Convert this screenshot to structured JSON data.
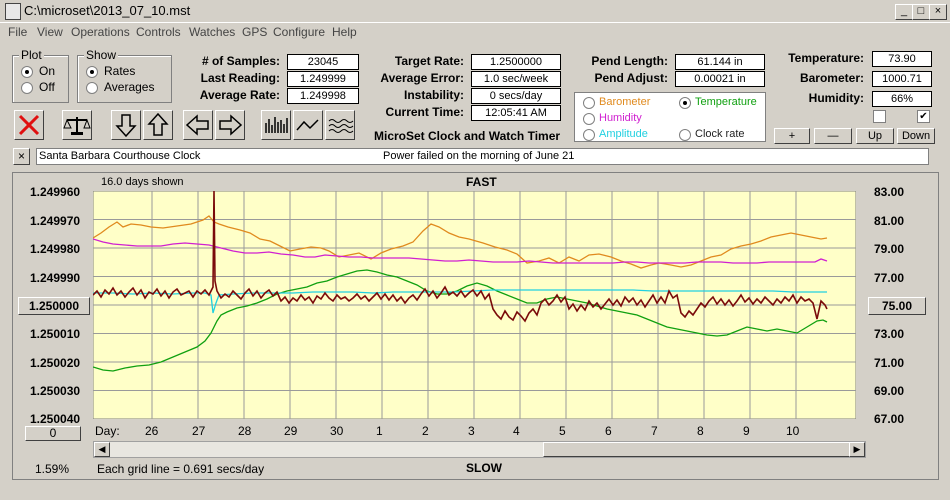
{
  "window": {
    "title": "C:\\microset\\2013_07_10.mst",
    "minimize_label": "_",
    "maximize_label": "□",
    "close_label": "×"
  },
  "menu": [
    "File",
    "View",
    "Operations",
    "Controls",
    "Watches",
    "GPS",
    "Configure",
    "Help"
  ],
  "plot_group": {
    "title": "Plot",
    "on": "On",
    "off": "Off",
    "selected": "On"
  },
  "show_group": {
    "title": "Show",
    "rates": "Rates",
    "averages": "Averages",
    "selected": "Rates"
  },
  "stats": {
    "samples_label": "# of Samples:",
    "samples": "23045",
    "last_reading_label": "Last Reading:",
    "last_reading": "1.249999",
    "average_rate_label": "Average Rate:",
    "average_rate": "1.249998",
    "target_rate_label": "Target Rate:",
    "target_rate": "1.2500000",
    "average_error_label": "Average Error:",
    "average_error": "1.0 sec/week",
    "instability_label": "Instability:",
    "instability": "0 secs/day",
    "current_time_label": "Current Time:",
    "current_time": "12:05:41 AM",
    "pend_length_label": "Pend Length:",
    "pend_length": "61.144 in",
    "pend_adjust_label": "Pend Adjust:",
    "pend_adjust": "0.00021 in",
    "temperature_label": "Temperature:",
    "temperature": "73.90",
    "barometer_label": "Barometer:",
    "barometer": "1000.71",
    "humidity_label": "Humidity:",
    "humidity": "66%"
  },
  "app_caption": "MicroSet Clock and Watch Timer",
  "sensor_select": {
    "barometer": "Barometer",
    "temperature": "Temperature",
    "humidity": "Humidity",
    "amplitude": "Amplitude",
    "clock_rate": "Clock rate",
    "selected": "Temperature",
    "colors": {
      "barometer": "#e08a1e",
      "temperature": "#10a010",
      "humidity": "#d020d0",
      "amplitude": "#20d0e0",
      "clock_rate": "#222222"
    }
  },
  "scale_buttons": {
    "plus": "+",
    "minus": "—",
    "up": "Up",
    "down": "Down"
  },
  "notes": {
    "clock_name": "Santa Barbara Courthouse Clock",
    "event": "Power failed on the morning of June 21",
    "clear": "×"
  },
  "plot": {
    "days_shown": "16.0 days shown",
    "fast_label": "FAST",
    "slow_label": "SLOW",
    "grid_note": "Each grid line = 0.691 secs/day",
    "percent": "1.59%",
    "left_button": "1.250000",
    "right_button": "75.00",
    "zero_button": "0",
    "day_prefix": "Day:",
    "day_ticks": [
      "26",
      "27",
      "28",
      "29",
      "30",
      "1",
      "2",
      "3",
      "4",
      "5",
      "6",
      "7",
      "8",
      "9",
      "10"
    ],
    "left_axis": [
      "1.249960",
      "1.249970",
      "1.249980",
      "1.249990",
      "1.250000",
      "1.250010",
      "1.250020",
      "1.250030",
      "1.250040"
    ],
    "right_axis": [
      "83.00",
      "81.00",
      "79.00",
      "77.00",
      "75.00",
      "73.00",
      "71.00",
      "69.00",
      "67.00"
    ],
    "colors": {
      "background": "#ffffc8",
      "grid": "#9a9a9a"
    }
  }
}
